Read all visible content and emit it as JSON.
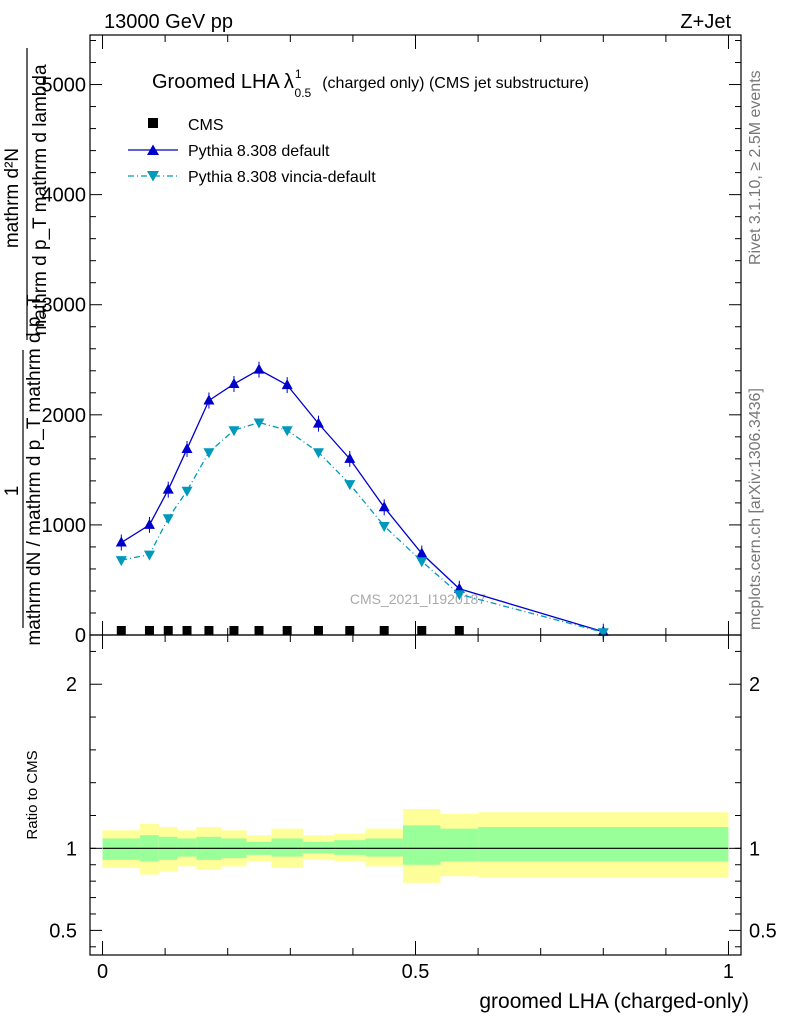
{
  "header": {
    "left": "13000 GeV pp",
    "right": "Z+Jet"
  },
  "plot_title": {
    "main": "Groomed LHA",
    "lambda": "λ",
    "sup": "1",
    "sub": "0.5",
    "rest": "(charged only) (CMS jet substructure)"
  },
  "side_texts": {
    "rivet": "Rivet 3.1.10, ≥ 2.5M events",
    "mcplots": "mcplots.cern.ch [arXiv:1306.3436]"
  },
  "watermark": "CMS_2021_I1920187",
  "colors": {
    "pythia_default": "#0000cc",
    "pythia_vincia": "#0099bb",
    "cms": "#000000",
    "band_inner": "#99ff99",
    "band_outer": "#ffff99"
  },
  "chart_data": [
    {
      "type": "line",
      "ylabel": {
        "top_num": "mathrm d²N",
        "top_den": "mathrm d p_T mathrm d lambda",
        "frac_one": "1",
        "den": "mathrm dN / mathrm d p_T mathrm d p_T"
      },
      "ylim": [
        0,
        5450
      ],
      "xlim": [
        -0.02,
        1.02
      ],
      "y_ticks": [
        0,
        1000,
        2000,
        3000,
        4000,
        5000
      ],
      "y_tick_labels": [
        "0",
        "1000",
        "2000",
        "3000",
        "4000",
        "5000"
      ],
      "legend_position": "top-left",
      "series": [
        {
          "name": "CMS",
          "marker": "square",
          "x": [
            0.03,
            0.075,
            0.105,
            0.135,
            0.17,
            0.21,
            0.25,
            0.295,
            0.345,
            0.395,
            0.45,
            0.51,
            0.57
          ],
          "y": [
            0,
            0,
            0,
            0,
            0,
            0,
            0,
            0,
            0,
            0,
            0,
            0,
            0
          ]
        },
        {
          "name": "Pythia 8.308 default",
          "marker": "triangle-up",
          "x": [
            0.03,
            0.075,
            0.105,
            0.135,
            0.17,
            0.21,
            0.25,
            0.295,
            0.345,
            0.395,
            0.45,
            0.51,
            0.57,
            0.8
          ],
          "y": [
            840,
            1000,
            1320,
            1690,
            2130,
            2280,
            2410,
            2270,
            1920,
            1600,
            1160,
            740,
            420,
            30
          ]
        },
        {
          "name": "Pythia 8.308 vincia-default",
          "marker": "triangle-down",
          "x": [
            0.03,
            0.075,
            0.105,
            0.135,
            0.17,
            0.21,
            0.25,
            0.295,
            0.345,
            0.395,
            0.45,
            0.51,
            0.57,
            0.8
          ],
          "y": [
            680,
            730,
            1060,
            1310,
            1660,
            1860,
            1930,
            1860,
            1660,
            1370,
            990,
            670,
            370,
            25
          ]
        }
      ]
    },
    {
      "type": "area",
      "ylabel": "Ratio to CMS",
      "xlabel": "groomed LHA (charged-only)",
      "ylim": [
        0.35,
        2.3
      ],
      "xlim": [
        -0.02,
        1.02
      ],
      "y_ticks": [
        0.5,
        1,
        2
      ],
      "y_tick_labels": [
        "0.5",
        "1",
        "2"
      ],
      "x_ticks": [
        0,
        0.5,
        1
      ],
      "x_tick_labels": [
        "0",
        "0.5",
        "1"
      ],
      "bins": [
        0,
        0.06,
        0.09,
        0.12,
        0.15,
        0.19,
        0.23,
        0.27,
        0.32,
        0.37,
        0.42,
        0.48,
        0.54,
        0.6,
        1.0
      ],
      "inner_band": [
        [
          0.93,
          1.06
        ],
        [
          0.92,
          1.08
        ],
        [
          0.93,
          1.07
        ],
        [
          0.95,
          1.06
        ],
        [
          0.93,
          1.07
        ],
        [
          0.94,
          1.06
        ],
        [
          0.96,
          1.04
        ],
        [
          0.95,
          1.06
        ],
        [
          0.97,
          1.04
        ],
        [
          0.96,
          1.05
        ],
        [
          0.95,
          1.06
        ],
        [
          0.9,
          1.14
        ],
        [
          0.92,
          1.12
        ],
        [
          0.92,
          1.13
        ]
      ],
      "outer_band": [
        [
          0.88,
          1.11
        ],
        [
          0.84,
          1.15
        ],
        [
          0.86,
          1.13
        ],
        [
          0.89,
          1.11
        ],
        [
          0.87,
          1.13
        ],
        [
          0.89,
          1.11
        ],
        [
          0.92,
          1.08
        ],
        [
          0.88,
          1.12
        ],
        [
          0.93,
          1.08
        ],
        [
          0.92,
          1.09
        ],
        [
          0.89,
          1.12
        ],
        [
          0.79,
          1.24
        ],
        [
          0.83,
          1.21
        ],
        [
          0.82,
          1.22
        ]
      ],
      "reference_line": 1
    }
  ]
}
